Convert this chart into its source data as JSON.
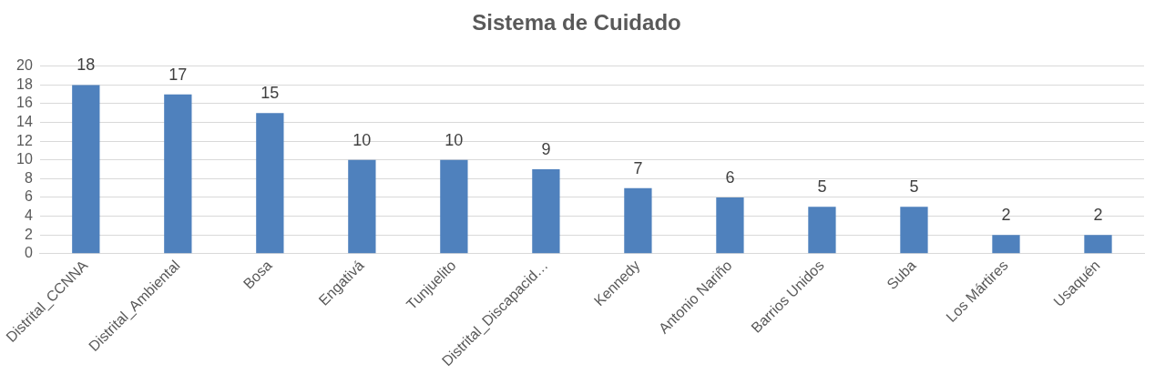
{
  "chart_data": {
    "type": "bar",
    "title": "Sistema de Cuidado",
    "categories": [
      "Distrital_CCNNA",
      "Distrital_Ambiental",
      "Bosa",
      "Engativá",
      "Tunjuelito",
      "Distrital_Discapacid…",
      "Kennedy",
      "Antonio Nariño",
      "Barrios Unidos",
      "Suba",
      "Los Mártires",
      "Usaquén"
    ],
    "values": [
      18,
      17,
      15,
      10,
      10,
      9,
      7,
      6,
      5,
      5,
      2,
      2
    ],
    "color": "#4f81bd",
    "ylim": [
      0,
      20
    ],
    "yticks": [
      0,
      2,
      4,
      6,
      8,
      10,
      12,
      14,
      16,
      18,
      20
    ],
    "grid": "y",
    "data_labels": true,
    "legend": false
  }
}
